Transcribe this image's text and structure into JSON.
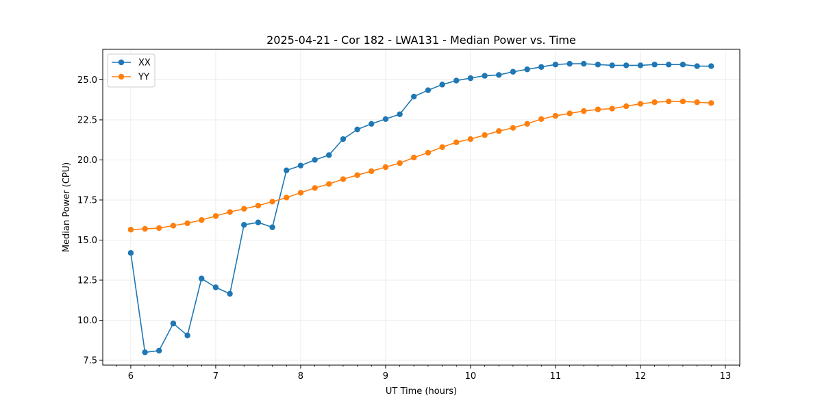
{
  "chart_data": {
    "type": "line",
    "title": "2025-04-21 - Cor 182 - LWA131 - Median Power vs. Time",
    "xlabel": "UT Time (hours)",
    "ylabel": "Median Power (CPU)",
    "xlim": [
      5.67,
      13.17
    ],
    "ylim": [
      7.2,
      26.9
    ],
    "xticks": [
      6,
      7,
      8,
      9,
      10,
      11,
      12,
      13
    ],
    "xtick_labels": [
      "6",
      "7",
      "8",
      "9",
      "10",
      "11",
      "12",
      "13"
    ],
    "yticks": [
      7.5,
      10.0,
      12.5,
      15.0,
      17.5,
      20.0,
      22.5,
      25.0
    ],
    "ytick_labels": [
      "7.5",
      "10.0",
      "12.5",
      "15.0",
      "17.5",
      "20.0",
      "22.5",
      "25.0"
    ],
    "grid": true,
    "legend_position": "upper-left",
    "x": [
      6.0,
      6.167,
      6.333,
      6.5,
      6.667,
      6.833,
      7.0,
      7.167,
      7.333,
      7.5,
      7.667,
      7.833,
      8.0,
      8.167,
      8.333,
      8.5,
      8.667,
      8.833,
      9.0,
      9.167,
      9.333,
      9.5,
      9.667,
      9.833,
      10.0,
      10.167,
      10.333,
      10.5,
      10.667,
      10.833,
      11.0,
      11.167,
      11.333,
      11.5,
      11.667,
      11.833,
      12.0,
      12.167,
      12.333,
      12.5,
      12.667,
      12.833
    ],
    "series": [
      {
        "name": "XX",
        "color": "#1f77b4",
        "values": [
          14.2,
          8.0,
          8.1,
          9.8,
          9.05,
          12.6,
          12.05,
          11.65,
          15.95,
          16.1,
          15.8,
          19.35,
          19.65,
          20.0,
          20.3,
          21.3,
          21.9,
          22.25,
          22.55,
          22.85,
          23.95,
          24.35,
          24.7,
          24.95,
          25.1,
          25.25,
          25.3,
          25.5,
          25.65,
          25.8,
          25.95,
          26.0,
          26.0,
          25.95,
          25.9,
          25.9,
          25.9,
          25.95,
          25.95,
          25.95,
          25.85,
          25.85
        ]
      },
      {
        "name": "YY",
        "color": "#ff7f0e",
        "values": [
          15.65,
          15.7,
          15.75,
          15.9,
          16.05,
          16.25,
          16.5,
          16.75,
          16.95,
          17.15,
          17.4,
          17.65,
          17.95,
          18.25,
          18.5,
          18.8,
          19.05,
          19.3,
          19.55,
          19.8,
          20.15,
          20.45,
          20.8,
          21.1,
          21.3,
          21.55,
          21.8,
          22.0,
          22.25,
          22.55,
          22.75,
          22.9,
          23.05,
          23.15,
          23.2,
          23.35,
          23.5,
          23.6,
          23.65,
          23.65,
          23.6,
          23.55
        ]
      }
    ]
  }
}
